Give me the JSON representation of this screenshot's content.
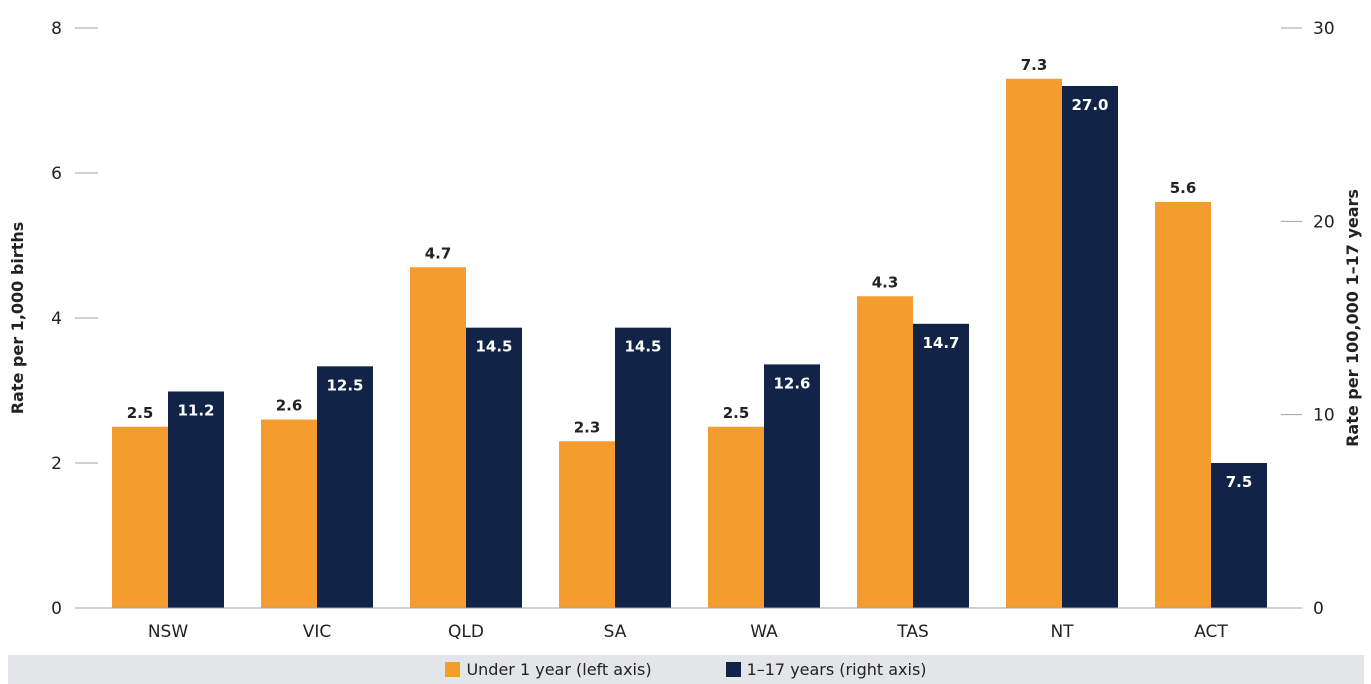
{
  "chart_data": {
    "type": "bar",
    "categories": [
      "NSW",
      "VIC",
      "QLD",
      "SA",
      "WA",
      "TAS",
      "NT",
      "ACT"
    ],
    "series": [
      {
        "name": "Under 1 year (left axis)",
        "axis": "left",
        "color": "#f59c2f",
        "values": [
          2.5,
          2.6,
          4.7,
          2.3,
          2.5,
          4.3,
          7.3,
          5.6
        ],
        "labels": [
          "2.5",
          "2.6",
          "4.7",
          "2.3",
          "2.5",
          "4.3",
          "7.3",
          "5.6"
        ]
      },
      {
        "name": "1–17 years (right axis)",
        "axis": "right",
        "color": "#122348",
        "values": [
          11.2,
          12.5,
          14.5,
          14.5,
          12.6,
          14.7,
          27.0,
          7.5
        ],
        "labels": [
          "11.2",
          "12.5",
          "14.5",
          "14.5",
          "12.6",
          "14.7",
          "27.0",
          "7.5"
        ]
      }
    ],
    "ylabel": "Rate per 1,000 births",
    "y2label": "Rate per 100,000 1–17 years",
    "ylim": [
      0,
      8
    ],
    "y2lim": [
      0,
      30
    ],
    "yticks": [
      "0",
      "2",
      "4",
      "6",
      "8"
    ],
    "y2ticks": [
      "0",
      "10",
      "20",
      "30"
    ],
    "grid": false,
    "legend_position": "bottom"
  }
}
